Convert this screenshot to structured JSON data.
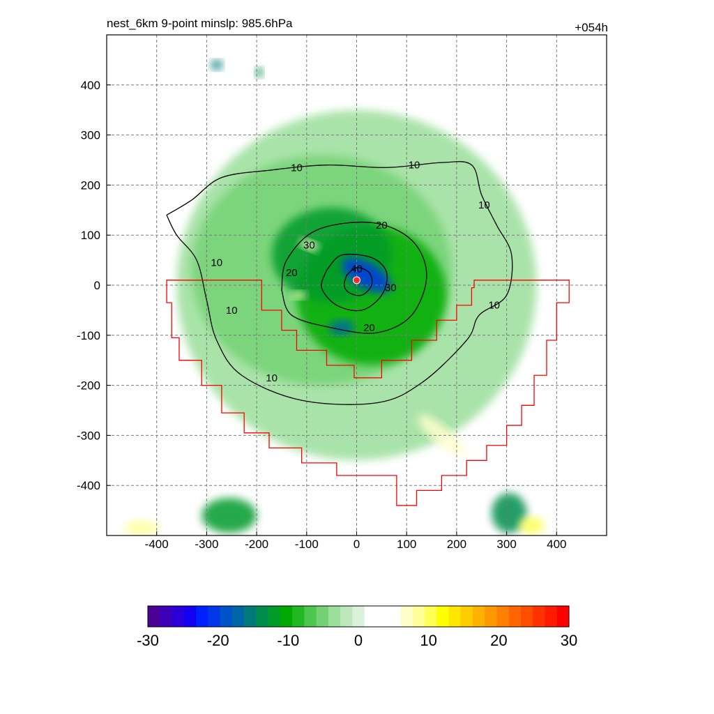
{
  "title": "nest_6km  9-point minslp: 985.6hPa",
  "forecast_hour": "+054h",
  "colorbar": {
    "ticks": [
      "-30",
      "-20",
      "-10",
      "0",
      "10",
      "20",
      "30"
    ],
    "colors": [
      "#4b0096",
      "#3c00b8",
      "#2a00d8",
      "#1200f0",
      "#0020ff",
      "#0038e8",
      "#0052c8",
      "#0066a8",
      "#007a7a",
      "#008c4c",
      "#009a28",
      "#00aa00",
      "#22b822",
      "#4cc64c",
      "#74d274",
      "#9ade9a",
      "#bce8bc",
      "#daf2da",
      "#ffffff",
      "#ffffff",
      "#ffffff",
      "#ffffcc",
      "#ffff99",
      "#ffff55",
      "#ffff00",
      "#ffe600",
      "#ffcc00",
      "#ffb300",
      "#ff9900",
      "#ff8000",
      "#ff6600",
      "#ff4d00",
      "#ff3300",
      "#ff1a00",
      "#ff0000"
    ]
  },
  "chart_data": {
    "type": "heatmap",
    "title": "nest_6km  9-point minslp: 985.6hPa",
    "annotation": "+054h",
    "xlim": [
      -500,
      500
    ],
    "ylim": [
      -500,
      500
    ],
    "xticks": [
      -400,
      -300,
      -200,
      -100,
      0,
      100,
      200,
      300,
      400
    ],
    "yticks": [
      -400,
      -300,
      -200,
      -100,
      0,
      100,
      200,
      300,
      400
    ],
    "grid": true,
    "colorbar_range": [
      -30,
      30
    ],
    "contour_labels": [
      "10",
      "10",
      "10",
      "10",
      "10",
      "10",
      "10",
      "20",
      "20",
      "20",
      "30",
      "30",
      "40"
    ],
    "contour_label_positions": [
      {
        "text": "10",
        "x": -120,
        "y": 235
      },
      {
        "text": "10",
        "x": 115,
        "y": 240
      },
      {
        "text": "10",
        "x": 255,
        "y": 160
      },
      {
        "text": "10",
        "x": -280,
        "y": 45
      },
      {
        "text": "10",
        "x": -250,
        "y": -50
      },
      {
        "text": "10",
        "x": 275,
        "y": -40
      },
      {
        "text": "10",
        "x": -170,
        "y": -185
      },
      {
        "text": "20",
        "x": 50,
        "y": 120
      },
      {
        "text": "20",
        "x": -130,
        "y": 25
      },
      {
        "text": "20",
        "x": 25,
        "y": -85
      },
      {
        "text": "30",
        "x": -95,
        "y": 80
      },
      {
        "text": "30",
        "x": 68,
        "y": -5
      },
      {
        "text": "40",
        "x": 0,
        "y": 33
      }
    ],
    "min_slp_hpa": 985.6,
    "storm_center": {
      "x": 0,
      "y": 10
    },
    "contours": {
      "c10": [
        [
          -380,
          140
        ],
        [
          -330,
          170
        ],
        [
          -270,
          215
        ],
        [
          -170,
          230
        ],
        [
          -60,
          240
        ],
        [
          60,
          235
        ],
        [
          170,
          245
        ],
        [
          230,
          240
        ],
        [
          250,
          180
        ],
        [
          280,
          120
        ],
        [
          310,
          60
        ],
        [
          300,
          -20
        ],
        [
          245,
          -60
        ],
        [
          220,
          -110
        ],
        [
          130,
          -195
        ],
        [
          40,
          -235
        ],
        [
          -110,
          -230
        ],
        [
          -230,
          -180
        ],
        [
          -280,
          -110
        ],
        [
          -300,
          -30
        ],
        [
          -320,
          50
        ],
        [
          -360,
          100
        ],
        [
          -380,
          140
        ]
      ],
      "c20": [
        [
          -150,
          -10
        ],
        [
          -140,
          50
        ],
        [
          -80,
          110
        ],
        [
          30,
          125
        ],
        [
          110,
          90
        ],
        [
          140,
          20
        ],
        [
          110,
          -60
        ],
        [
          40,
          -95
        ],
        [
          -50,
          -85
        ],
        [
          -130,
          -60
        ],
        [
          -150,
          -10
        ]
      ],
      "c30": [
        [
          -60,
          30
        ],
        [
          -30,
          60
        ],
        [
          30,
          55
        ],
        [
          60,
          25
        ],
        [
          50,
          -20
        ],
        [
          10,
          -50
        ],
        [
          -40,
          -40
        ],
        [
          -70,
          -5
        ],
        [
          -60,
          30
        ]
      ],
      "c40": [
        [
          -20,
          20
        ],
        [
          0,
          35
        ],
        [
          25,
          25
        ],
        [
          30,
          0
        ],
        [
          10,
          -20
        ],
        [
          -15,
          -15
        ],
        [
          -25,
          0
        ],
        [
          -20,
          20
        ]
      ]
    },
    "shading": [
      {
        "value": -20,
        "x": 20,
        "y": 20,
        "rx": 55,
        "ry": 25,
        "rot": -30
      },
      {
        "value": -18,
        "x": -30,
        "y": -85,
        "rx": 25,
        "ry": 15,
        "rot": 0
      },
      {
        "value": -12,
        "x": -50,
        "y": 60,
        "rx": 120,
        "ry": 95,
        "rot": 0
      },
      {
        "value": -10,
        "x": 30,
        "y": -20,
        "rx": 150,
        "ry": 140,
        "rot": 0
      },
      {
        "value": -6,
        "x": -70,
        "y": 30,
        "rx": 260,
        "ry": 230,
        "rot": 0
      },
      {
        "value": -4,
        "x": 0,
        "y": 0,
        "rx": 360,
        "ry": 350,
        "rot": 0
      },
      {
        "value": -12,
        "x": -255,
        "y": -460,
        "rx": 55,
        "ry": 35,
        "rot": 0
      },
      {
        "value": -14,
        "x": 305,
        "y": -455,
        "rx": 35,
        "ry": 40,
        "rot": 0
      },
      {
        "value": 8,
        "x": -430,
        "y": -485,
        "rx": 35,
        "ry": 15,
        "rot": 0
      },
      {
        "value": 10,
        "x": 350,
        "y": -480,
        "rx": 25,
        "ry": 18,
        "rot": 0
      },
      {
        "value": 6,
        "x": 170,
        "y": -300,
        "rx": 60,
        "ry": 18,
        "rot": -40
      },
      {
        "value": 7,
        "x": -95,
        "y": 80,
        "rx": 20,
        "ry": 10,
        "rot": -20
      },
      {
        "value": 7,
        "x": -115,
        "y": -20,
        "rx": 15,
        "ry": 8,
        "rot": 0
      },
      {
        "value": -16,
        "x": -280,
        "y": 440,
        "rx": 12,
        "ry": 10,
        "rot": 0
      },
      {
        "value": -14,
        "x": -195,
        "y": 425,
        "rx": 8,
        "ry": 10,
        "rot": 0
      }
    ],
    "red_boundary": [
      [
        -380,
        10
      ],
      [
        -190,
        10
      ],
      [
        -190,
        -50
      ],
      [
        -150,
        -50
      ],
      [
        -150,
        -90
      ],
      [
        -120,
        -90
      ],
      [
        -120,
        -130
      ],
      [
        -60,
        -130
      ],
      [
        -60,
        -160
      ],
      [
        -5,
        -160
      ],
      [
        -5,
        -185
      ],
      [
        50,
        -185
      ],
      [
        50,
        -150
      ],
      [
        110,
        -150
      ],
      [
        110,
        -110
      ],
      [
        160,
        -110
      ],
      [
        160,
        -70
      ],
      [
        200,
        -70
      ],
      [
        200,
        -40
      ],
      [
        230,
        -40
      ],
      [
        230,
        -5
      ],
      [
        235,
        -5
      ],
      [
        235,
        10
      ],
      [
        425,
        10
      ],
      [
        425,
        -35
      ],
      [
        400,
        -35
      ],
      [
        400,
        -110
      ],
      [
        380,
        -110
      ],
      [
        380,
        -180
      ],
      [
        355,
        -180
      ],
      [
        355,
        -240
      ],
      [
        330,
        -240
      ],
      [
        330,
        -280
      ],
      [
        300,
        -280
      ],
      [
        300,
        -320
      ],
      [
        260,
        -320
      ],
      [
        260,
        -350
      ],
      [
        220,
        -350
      ],
      [
        220,
        -380
      ],
      [
        170,
        -380
      ],
      [
        170,
        -410
      ],
      [
        120,
        -410
      ],
      [
        120,
        -440
      ],
      [
        80,
        -440
      ],
      [
        80,
        -380
      ],
      [
        -40,
        -380
      ],
      [
        -40,
        -355
      ],
      [
        -110,
        -355
      ],
      [
        -110,
        -325
      ],
      [
        -175,
        -325
      ],
      [
        -175,
        -295
      ],
      [
        -225,
        -295
      ],
      [
        -225,
        -255
      ],
      [
        -270,
        -255
      ],
      [
        -270,
        -200
      ],
      [
        -310,
        -200
      ],
      [
        -310,
        -150
      ],
      [
        -355,
        -150
      ],
      [
        -355,
        -105
      ],
      [
        -370,
        -105
      ],
      [
        -370,
        -35
      ],
      [
        -380,
        -35
      ],
      [
        -380,
        10
      ]
    ]
  }
}
